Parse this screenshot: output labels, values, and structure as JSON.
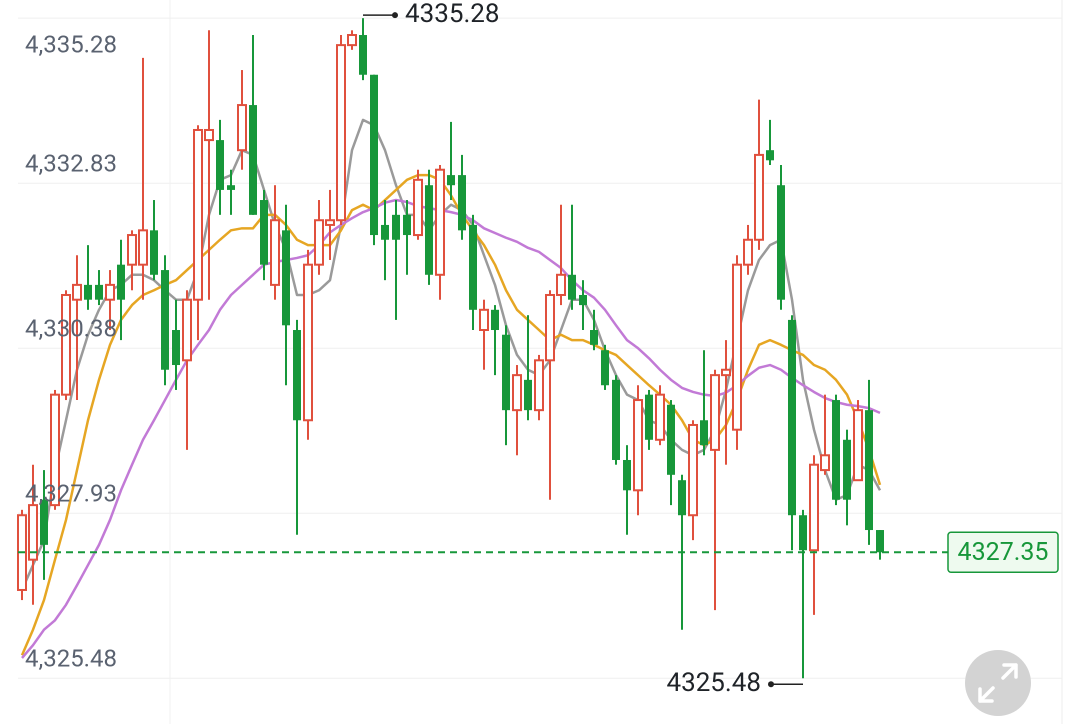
{
  "chart_data": {
    "type": "candlestick",
    "ylim": [
      4324.8,
      4335.55
    ],
    "yticks": [
      {
        "value": 4325.48,
        "label": "4,325.48"
      },
      {
        "value": 4327.93,
        "label": "4,327.93"
      },
      {
        "value": 4330.38,
        "label": "4,330.38"
      },
      {
        "value": 4332.83,
        "label": "4,332.83"
      },
      {
        "value": 4335.28,
        "label": "4,335.28"
      }
    ],
    "grid": true,
    "up_color": "#e0503d",
    "down_color": "#17973a",
    "open": [
      4326.79,
      4327.24,
      4328.13,
      4328.05,
      4329.69,
      4331.1,
      4331.32,
      4331.32,
      4331.1,
      4331.62,
      4331.62,
      4331.62,
      4332.13,
      4331.54,
      4330.65,
      4330.2,
      4331.1,
      4333.47,
      4333.47,
      4332.8,
      4333.32,
      4333.99,
      4332.58,
      4331.32,
      4332.13,
      4330.65,
      4329.31,
      4331.62,
      4332.21,
      4332.28,
      4334.88,
      4335.03,
      4334.44,
      4332.21,
      4332.36,
      4332.36,
      4332.06,
      4332.8,
      4331.47,
      4332.95,
      4332.95,
      4332.21,
      4330.65,
      4330.95,
      4330.58,
      4329.46,
      4329.91,
      4329.46,
      4330.2,
      4331.17,
      4331.47,
      4331.17,
      4330.65,
      4330.35,
      4329.91,
      4328.72,
      4328.27,
      4329.69,
      4329.02,
      4329.54,
      4328.42,
      4327.9,
      4329.31,
      4328.87,
      4329.98,
      4329.17,
      4331.62,
      4331.99,
      4333.32,
      4332.8,
      4330.8,
      4327.9,
      4327.38,
      4328.57,
      4329.61,
      4329.02,
      4328.42,
      4329.46,
      4327.68
    ],
    "high": [
      4327.98,
      4328.65,
      4328.57,
      4329.76,
      4331.24,
      4331.76,
      4331.91,
      4331.54,
      4331.54,
      4331.99,
      4332.13,
      4334.69,
      4332.58,
      4331.76,
      4331.1,
      4331.24,
      4333.69,
      4335.1,
      4333.77,
      4333.03,
      4334.51,
      4335.03,
      4332.73,
      4332.8,
      4332.51,
      4330.8,
      4331.84,
      4332.58,
      4332.73,
      4335.03,
      4335.1,
      4335.28,
      4334.44,
      4332.58,
      4332.58,
      4332.58,
      4333.03,
      4333.03,
      4333.1,
      4333.74,
      4333.25,
      4332.36,
      4331.1,
      4331.02,
      4330.72,
      4330.13,
      4330.87,
      4330.28,
      4331.24,
      4332.51,
      4332.51,
      4331.39,
      4330.95,
      4330.43,
      4329.98,
      4328.94,
      4329.83,
      4329.76,
      4329.83,
      4329.61,
      4328.5,
      4329.31,
      4330.35,
      4330.06,
      4330.5,
      4331.76,
      4332.21,
      4334.07,
      4333.77,
      4333.1,
      4330.87,
      4327.98,
      4328.79,
      4329.69,
      4329.69,
      4329.17,
      4329.61,
      4329.91,
      4327.68
    ],
    "low": [
      4326.64,
      4326.57,
      4326.94,
      4327.98,
      4329.61,
      4329.61,
      4330.95,
      4331.02,
      4330.65,
      4330.5,
      4331.24,
      4331.1,
      4331.39,
      4329.83,
      4329.76,
      4328.87,
      4330.5,
      4331.1,
      4332.36,
      4332.36,
      4333.03,
      4332.36,
      4331.39,
      4331.1,
      4329.83,
      4327.61,
      4329.02,
      4331.47,
      4331.69,
      4332.21,
      4334.81,
      4334.36,
      4331.91,
      4331.39,
      4330.8,
      4331.47,
      4331.99,
      4331.32,
      4331.1,
      4332.58,
      4331.99,
      4330.65,
      4330.06,
      4329.98,
      4328.94,
      4328.79,
      4329.31,
      4329.31,
      4328.13,
      4331.02,
      4330.95,
      4330.65,
      4330.35,
      4329.76,
      4328.65,
      4327.61,
      4327.9,
      4328.87,
      4328.94,
      4328.05,
      4326.2,
      4327.53,
      4328.79,
      4326.49,
      4328.65,
      4328.87,
      4331.47,
      4331.84,
      4333.1,
      4330.95,
      4327.38,
      4325.48,
      4326.42,
      4328.5,
      4328.05,
      4327.75,
      4328.42,
      4327.46,
      4327.24
    ],
    "close": [
      4327.9,
      4328.05,
      4327.46,
      4329.69,
      4331.17,
      4331.32,
      4331.1,
      4331.1,
      4331.32,
      4331.1,
      4332.06,
      4332.13,
      4331.47,
      4330.06,
      4330.13,
      4331.1,
      4333.62,
      4333.62,
      4332.73,
      4332.73,
      4333.99,
      4332.36,
      4331.62,
      4332.28,
      4330.72,
      4329.31,
      4331.62,
      4332.28,
      4332.28,
      4334.88,
      4335.03,
      4334.44,
      4332.06,
      4331.99,
      4331.99,
      4332.06,
      4332.88,
      4331.47,
      4333.03,
      4332.8,
      4332.13,
      4330.95,
      4330.95,
      4330.65,
      4329.46,
      4329.98,
      4329.46,
      4330.2,
      4331.17,
      4331.47,
      4331.1,
      4331.02,
      4330.43,
      4329.83,
      4328.72,
      4328.27,
      4329.61,
      4329.02,
      4329.69,
      4328.5,
      4327.9,
      4329.24,
      4328.94,
      4329.98,
      4330.06,
      4331.62,
      4331.99,
      4333.25,
      4333.17,
      4331.1,
      4327.9,
      4327.38,
      4328.65,
      4328.79,
      4328.13,
      4328.13,
      4329.46,
      4327.68,
      4327.35
    ],
    "series": [
      {
        "color": "#9a9a9a",
        "values": [
          4326.79,
          4327.16,
          4327.53,
          4328.57,
          4329.31,
          4330.06,
          4330.58,
          4330.95,
          4331.24,
          4331.32,
          4331.47,
          4331.47,
          4331.39,
          4331.24,
          4331.1,
          4331.1,
          4331.54,
          4332.36,
          4332.88,
          4332.95,
          4333.32,
          4333.25,
          4332.73,
          4332.21,
          4331.84,
          4331.17,
          4331.17,
          4331.24,
          4331.39,
          4332.21,
          4333.32,
          4333.77,
          4333.69,
          4333.32,
          4332.8,
          4332.36,
          4332.36,
          4332.13,
          4332.36,
          4332.51,
          4332.43,
          4332.21,
          4331.76,
          4331.32,
          4330.72,
          4330.28,
          4330.06,
          4329.98,
          4330.2,
          4330.65,
          4331.1,
          4331.1,
          4330.8,
          4330.35,
          4329.98,
          4329.69,
          4329.61,
          4329.31,
          4329.24,
          4329.02,
          4328.87,
          4328.79,
          4328.87,
          4329.17,
          4329.76,
          4330.5,
          4331.24,
          4331.69,
          4331.91,
          4331.99,
          4331.1,
          4329.91,
          4329.17,
          4328.57,
          4328.13,
          4328.2,
          4328.65,
          4328.57,
          4328.27
        ]
      },
      {
        "color": "#e6a623",
        "values": [
          4325.82,
          4326.2,
          4326.64,
          4327.24,
          4327.83,
          4328.57,
          4329.31,
          4329.91,
          4330.43,
          4330.8,
          4331.02,
          4331.17,
          4331.24,
          4331.32,
          4331.39,
          4331.54,
          4331.69,
          4331.84,
          4331.99,
          4332.13,
          4332.16,
          4332.16,
          4332.36,
          4332.36,
          4332.21,
          4331.99,
          4331.91,
          4331.91,
          4331.91,
          4332.13,
          4332.43,
          4332.51,
          4332.43,
          4332.58,
          4332.73,
          4332.88,
          4332.95,
          4332.95,
          4332.88,
          4332.65,
          4332.36,
          4332.13,
          4331.91,
          4331.62,
          4331.24,
          4330.95,
          4330.8,
          4330.65,
          4330.5,
          4330.58,
          4330.5,
          4330.5,
          4330.43,
          4330.35,
          4330.28,
          4330.13,
          4329.98,
          4329.83,
          4329.69,
          4329.54,
          4329.31,
          4329.02,
          4328.94,
          4329.02,
          4329.24,
          4329.61,
          4330.06,
          4330.43,
          4330.5,
          4330.43,
          4330.35,
          4330.28,
          4330.13,
          4330.06,
          4329.91,
          4329.69,
          4329.31,
          4328.87,
          4328.35
        ]
      },
      {
        "color": "#c27ad6",
        "values": [
          4325.78,
          4325.97,
          4326.2,
          4326.34,
          4326.57,
          4326.86,
          4327.16,
          4327.46,
          4327.83,
          4328.27,
          4328.65,
          4329.02,
          4329.31,
          4329.61,
          4329.91,
          4330.2,
          4330.43,
          4330.65,
          4330.95,
          4331.17,
          4331.32,
          4331.47,
          4331.62,
          4331.66,
          4331.69,
          4331.72,
          4331.76,
          4331.91,
          4332.1,
          4332.21,
          4332.31,
          4332.4,
          4332.46,
          4332.54,
          4332.58,
          4332.55,
          4332.49,
          4332.46,
          4332.43,
          4332.4,
          4332.36,
          4332.28,
          4332.16,
          4332.09,
          4332.02,
          4331.96,
          4331.87,
          4331.81,
          4331.69,
          4331.57,
          4331.39,
          4331.24,
          4331.13,
          4330.95,
          4330.72,
          4330.5,
          4330.38,
          4330.23,
          4330.06,
          4329.91,
          4329.79,
          4329.73,
          4329.69,
          4329.67,
          4329.72,
          4329.83,
          4329.97,
          4330.09,
          4330.13,
          4330.06,
          4329.94,
          4329.83,
          4329.73,
          4329.64,
          4329.58,
          4329.54,
          4329.52,
          4329.49,
          4329.42
        ]
      }
    ],
    "max_marker": 4335.28,
    "min_marker": 4325.48,
    "last_price": 4327.35,
    "last_price_color": "#17973a"
  }
}
